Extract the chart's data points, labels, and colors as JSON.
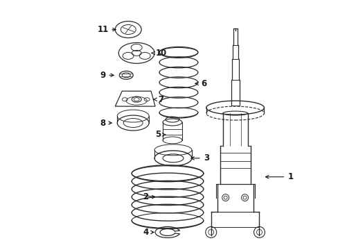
{
  "background_color": "#ffffff",
  "line_color": "#2a2a2a",
  "label_color": "#1a1a1a",
  "fig_width": 4.89,
  "fig_height": 3.6,
  "dpi": 100
}
